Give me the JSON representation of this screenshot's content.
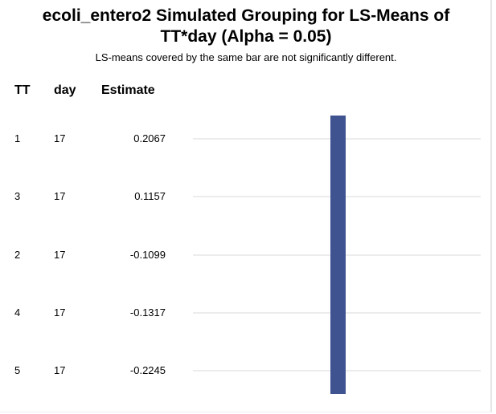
{
  "chart_data": {
    "type": "table",
    "title": "ecoli_entero2 Simulated Grouping for LS-Means of TT*day (Alpha = 0.05)",
    "title_lines": [
      "ecoli_entero2 Simulated Grouping for LS-Means of",
      "TT*day (Alpha = 0.05)"
    ],
    "subtitle": "LS-means covered by the same bar are not significantly different.",
    "columns": [
      "TT",
      "day",
      "Estimate"
    ],
    "rows": [
      {
        "TT": "1",
        "day": "17",
        "estimate": "0.2067"
      },
      {
        "TT": "3",
        "day": "17",
        "estimate": "0.1157"
      },
      {
        "TT": "2",
        "day": "17",
        "estimate": "-0.1099"
      },
      {
        "TT": "4",
        "day": "17",
        "estimate": "-0.1317"
      },
      {
        "TT": "5",
        "day": "17",
        "estimate": "-0.2245"
      }
    ],
    "groups": [
      {
        "from_row": 0,
        "to_row": 4
      }
    ],
    "bar_color": "#3f5390",
    "gridline_color": "#d9d9d9"
  }
}
